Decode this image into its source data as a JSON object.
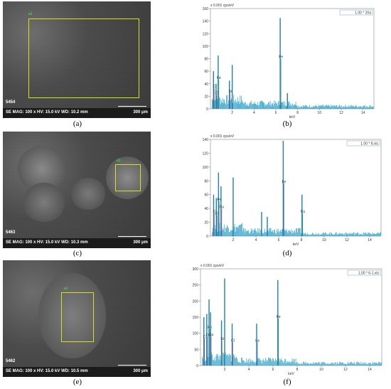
{
  "panels": {
    "a": {
      "caption": "(a)",
      "code": "5454",
      "info": "SE  MAG: 100 x  HV: 15.0 kV  WD: 10.2 mm",
      "scale": "300 μm",
      "roi_label": "a1"
    },
    "c": {
      "caption": "(c)",
      "code": "5463",
      "info": "SE  MAG: 100 x  HV: 15.0 kV  WD: 10.3 mm",
      "scale": "300 μm",
      "roi_label": "a1"
    },
    "e": {
      "caption": "(e)",
      "code": "5462",
      "info": "SE  MAG: 100 x  HV: 15.0 kV  WD: 10.5 mm",
      "scale": "300 μm",
      "roi_label": "a1"
    },
    "b": {
      "caption": "(b)"
    },
    "d": {
      "caption": "(d)"
    },
    "f": {
      "caption": "(f)"
    }
  },
  "chart_data": [
    {
      "type": "bar",
      "ylabel": "x 0.001 cps/eV",
      "xlabel": "keV",
      "legend": "1.00 * 20a",
      "xlim": [
        0,
        15
      ],
      "ylim": [
        0,
        160
      ],
      "yticks": [
        0,
        20,
        40,
        60,
        80,
        100,
        120,
        140,
        160
      ],
      "xticks": [
        2,
        4,
        6,
        8,
        10,
        12,
        14
      ],
      "peaks": [
        {
          "x": 0.28,
          "y": 60,
          "label": "C"
        },
        {
          "x": 0.52,
          "y": 40,
          "label": "O"
        },
        {
          "x": 0.71,
          "y": 85,
          "label": "Fe"
        },
        {
          "x": 1.74,
          "y": 45,
          "label": "Si"
        },
        {
          "x": 2.0,
          "y": 70,
          "label": ""
        },
        {
          "x": 6.4,
          "y": 145,
          "label": "Fe"
        },
        {
          "x": 7.06,
          "y": 25,
          "label": ""
        }
      ]
    },
    {
      "type": "bar",
      "ylabel": "x 0.001 cps/eV",
      "xlabel": "keV",
      "legend": "1.00 * 8.xls",
      "xlim": [
        0,
        15
      ],
      "ylim": [
        0,
        140
      ],
      "yticks": [
        0,
        20,
        40,
        60,
        80,
        100,
        120,
        140
      ],
      "xticks": [
        2,
        4,
        6,
        8,
        10,
        12,
        14
      ],
      "peaks": [
        {
          "x": 0.28,
          "y": 60,
          "label": "C"
        },
        {
          "x": 0.52,
          "y": 55,
          "label": "Zn"
        },
        {
          "x": 0.71,
          "y": 92,
          "label": "Fe"
        },
        {
          "x": 0.93,
          "y": 72,
          "label": "Cu"
        },
        {
          "x": 2.0,
          "y": 85,
          "label": ""
        },
        {
          "x": 4.5,
          "y": 35,
          "label": ""
        },
        {
          "x": 5.0,
          "y": 28,
          "label": ""
        },
        {
          "x": 6.4,
          "y": 138,
          "label": "Fe"
        },
        {
          "x": 8.05,
          "y": 60,
          "label": "Cu"
        }
      ]
    },
    {
      "type": "bar",
      "ylabel": "x 0.001 cps/eV",
      "xlabel": "keV",
      "legend": "1.00 * 6-1.xls",
      "xlim": [
        0,
        15
      ],
      "ylim": [
        0,
        300
      ],
      "yticks": [
        0,
        50,
        100,
        150,
        200,
        250,
        300
      ],
      "xticks": [
        2,
        4,
        6,
        8,
        10,
        12,
        14
      ],
      "peaks": [
        {
          "x": 0.28,
          "y": 150,
          "label": "C"
        },
        {
          "x": 0.52,
          "y": 160,
          "label": "O"
        },
        {
          "x": 0.71,
          "y": 205,
          "label": "Fe"
        },
        {
          "x": 0.83,
          "y": 165,
          "label": "La"
        },
        {
          "x": 1.74,
          "y": 140,
          "label": "Si"
        },
        {
          "x": 2.0,
          "y": 270,
          "label": ""
        },
        {
          "x": 2.62,
          "y": 130,
          "label": "Cl"
        },
        {
          "x": 4.65,
          "y": 130,
          "label": "La"
        },
        {
          "x": 6.4,
          "y": 265,
          "label": "Fe"
        }
      ]
    }
  ]
}
